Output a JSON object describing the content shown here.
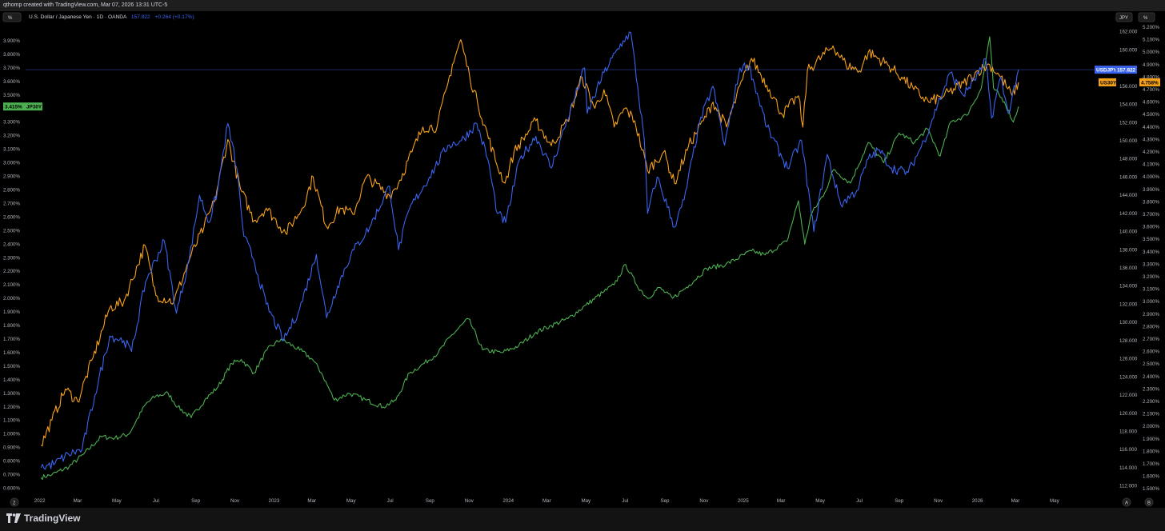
{
  "header": {
    "created_text": "qthomp created with TradingView.com, Mar 07, 2026 13:31 UTC-5"
  },
  "legend": {
    "symbol": "U.S. Dollar / Japanese Yen · 1D · OANDA",
    "value": "157.822",
    "change": "+0.264 (+0.17%)"
  },
  "buttons": {
    "left_scale": "%",
    "jpy_scale": "JPY",
    "right_scale": "%",
    "bottom_left": "2",
    "auto": "A",
    "log": "B"
  },
  "brand": {
    "name": "TradingView"
  },
  "colors": {
    "usdjpy": "#3a64f0",
    "us30y": "#f7a11a",
    "jp30y": "#4caf50",
    "background": "#000000"
  },
  "tags": {
    "usdjpy": {
      "label": "USDJPY",
      "value": "157.822"
    },
    "us30y": {
      "label": "US30Y",
      "value": "4.758%"
    },
    "jp30y": {
      "label": "JP30Y",
      "value": "3.415%"
    }
  },
  "chart_data": {
    "type": "line",
    "x_ticks": [
      "2022",
      "Mar",
      "May",
      "Jul",
      "Sep",
      "Nov",
      "2023",
      "Mar",
      "May",
      "Jul",
      "Sep",
      "Nov",
      "2024",
      "Mar",
      "May",
      "Jul",
      "Sep",
      "Nov",
      "2025",
      "Mar",
      "May",
      "Jul",
      "Sep",
      "Nov",
      "2026",
      "Mar",
      "May"
    ],
    "x_tick_dates": [
      "2022-01-01",
      "2022-03-01",
      "2022-05-01",
      "2022-07-01",
      "2022-09-01",
      "2022-11-01",
      "2023-01-01",
      "2023-03-01",
      "2023-05-01",
      "2023-07-01",
      "2023-09-01",
      "2023-11-01",
      "2024-01-01",
      "2024-03-01",
      "2024-05-01",
      "2024-07-01",
      "2024-09-01",
      "2024-11-01",
      "2025-01-01",
      "2025-03-01",
      "2025-05-01",
      "2025-07-01",
      "2025-09-01",
      "2025-11-01",
      "2026-01-01",
      "2026-03-01",
      "2026-05-01"
    ],
    "x_range": [
      "2021-12-10",
      "2026-06-30"
    ],
    "left_axis": {
      "unit": "%",
      "ylim": [
        0.55,
        4.0
      ],
      "ticks": [
        "0.600%",
        "0.700%",
        "0.800%",
        "0.900%",
        "1.000%",
        "1.100%",
        "1.200%",
        "1.300%",
        "1.400%",
        "1.500%",
        "1.600%",
        "1.700%",
        "1.800%",
        "1.900%",
        "2.000%",
        "2.100%",
        "2.200%",
        "2.300%",
        "2.400%",
        "2.500%",
        "2.600%",
        "2.700%",
        "2.800%",
        "2.900%",
        "3.000%",
        "3.100%",
        "3.200%",
        "3.300%",
        "3.400%",
        "3.500%",
        "3.600%",
        "3.700%",
        "3.800%",
        "3.900%"
      ]
    },
    "jpy_axis": {
      "unit": "JPY",
      "ylim": [
        111.0,
        162.5
      ],
      "ticks": [
        "112.000",
        "114.000",
        "116.000",
        "118.000",
        "120.000",
        "122.000",
        "124.000",
        "126.000",
        "128.000",
        "130.000",
        "132.000",
        "134.000",
        "136.000",
        "138.000",
        "140.000",
        "142.000",
        "144.000",
        "146.000",
        "148.000",
        "150.000",
        "152.000",
        "154.000",
        "156.000",
        "158.000",
        "160.000",
        "162.000"
      ]
    },
    "right_axis": {
      "unit": "%",
      "ylim": [
        1.45,
        5.2
      ],
      "ticks": [
        "1.500%",
        "1.600%",
        "1.700%",
        "1.800%",
        "1.900%",
        "2.000%",
        "2.100%",
        "2.200%",
        "2.300%",
        "2.400%",
        "2.500%",
        "2.600%",
        "2.700%",
        "2.800%",
        "2.900%",
        "3.000%",
        "3.100%",
        "3.200%",
        "3.300%",
        "3.400%",
        "3.500%",
        "3.600%",
        "3.700%",
        "3.800%",
        "3.900%",
        "4.000%",
        "4.100%",
        "4.200%",
        "4.300%",
        "4.400%",
        "4.500%",
        "4.600%",
        "4.700%",
        "4.800%",
        "4.900%",
        "5.000%",
        "5.100%",
        "5.200%"
      ]
    },
    "current_price_line": 157.822,
    "series": [
      {
        "name": "USDJPY",
        "axis": "jpy",
        "points": [
          [
            "2022-01-03",
            114.0
          ],
          [
            "2022-01-25",
            114.5
          ],
          [
            "2022-02-15",
            115.5
          ],
          [
            "2022-03-08",
            116.0
          ],
          [
            "2022-03-28",
            122.0
          ],
          [
            "2022-04-20",
            128.5
          ],
          [
            "2022-05-12",
            128.0
          ],
          [
            "2022-05-24",
            126.8
          ],
          [
            "2022-06-15",
            134.5
          ],
          [
            "2022-07-14",
            139.0
          ],
          [
            "2022-08-02",
            131.0
          ],
          [
            "2022-08-22",
            137.0
          ],
          [
            "2022-09-07",
            144.0
          ],
          [
            "2022-09-22",
            141.0
          ],
          [
            "2022-10-05",
            144.5
          ],
          [
            "2022-10-21",
            151.9
          ],
          [
            "2022-11-04",
            147.0
          ],
          [
            "2022-11-15",
            139.5
          ],
          [
            "2022-11-30",
            137.0
          ],
          [
            "2022-12-20",
            132.0
          ],
          [
            "2023-01-16",
            128.0
          ],
          [
            "2023-02-10",
            131.5
          ],
          [
            "2023-03-08",
            137.5
          ],
          [
            "2023-03-24",
            130.5
          ],
          [
            "2023-04-10",
            134.0
          ],
          [
            "2023-05-01",
            137.5
          ],
          [
            "2023-05-30",
            140.5
          ],
          [
            "2023-06-30",
            145.0
          ],
          [
            "2023-07-14",
            138.0
          ],
          [
            "2023-07-31",
            142.5
          ],
          [
            "2023-08-31",
            146.0
          ],
          [
            "2023-09-29",
            149.5
          ],
          [
            "2023-10-20",
            150.0
          ],
          [
            "2023-11-13",
            151.9
          ],
          [
            "2023-11-30",
            148.0
          ],
          [
            "2023-12-15",
            142.0
          ],
          [
            "2023-12-28",
            141.0
          ],
          [
            "2024-01-19",
            148.0
          ],
          [
            "2024-02-13",
            150.5
          ],
          [
            "2024-03-08",
            147.0
          ],
          [
            "2024-03-28",
            151.3
          ],
          [
            "2024-04-29",
            158.0
          ],
          [
            "2024-05-03",
            153.0
          ],
          [
            "2024-05-29",
            157.5
          ],
          [
            "2024-06-28",
            161.0
          ],
          [
            "2024-07-10",
            161.9
          ],
          [
            "2024-07-31",
            150.0
          ],
          [
            "2024-08-05",
            142.0
          ],
          [
            "2024-08-20",
            146.0
          ],
          [
            "2024-09-16",
            140.5
          ],
          [
            "2024-10-01",
            143.5
          ],
          [
            "2024-10-25",
            152.0
          ],
          [
            "2024-11-15",
            156.0
          ],
          [
            "2024-12-03",
            149.5
          ],
          [
            "2024-12-27",
            158.0
          ],
          [
            "2025-01-10",
            158.3
          ],
          [
            "2025-02-07",
            151.5
          ],
          [
            "2025-03-11",
            147.0
          ],
          [
            "2025-04-02",
            150.0
          ],
          [
            "2025-04-21",
            140.0
          ],
          [
            "2025-05-12",
            148.5
          ],
          [
            "2025-06-02",
            143.0
          ],
          [
            "2025-06-27",
            144.5
          ],
          [
            "2025-07-15",
            148.0
          ],
          [
            "2025-08-01",
            149.0
          ],
          [
            "2025-08-20",
            147.0
          ],
          [
            "2025-09-15",
            146.5
          ],
          [
            "2025-10-10",
            150.0
          ],
          [
            "2025-10-31",
            154.0
          ],
          [
            "2025-11-20",
            157.5
          ],
          [
            "2025-12-10",
            155.0
          ],
          [
            "2026-01-09",
            158.0
          ],
          [
            "2026-01-14",
            159.0
          ],
          [
            "2026-01-23",
            152.5
          ],
          [
            "2026-02-06",
            157.0
          ],
          [
            "2026-02-18",
            153.0
          ],
          [
            "2026-03-06",
            157.822
          ]
        ]
      },
      {
        "name": "US30Y",
        "axis": "right",
        "points": [
          [
            "2022-01-03",
            1.85
          ],
          [
            "2022-01-20",
            2.05
          ],
          [
            "2022-02-10",
            2.3
          ],
          [
            "2022-03-01",
            2.2
          ],
          [
            "2022-03-25",
            2.55
          ],
          [
            "2022-04-20",
            2.95
          ],
          [
            "2022-05-12",
            3.0
          ],
          [
            "2022-06-14",
            3.45
          ],
          [
            "2022-07-01",
            3.05
          ],
          [
            "2022-07-29",
            3.0
          ],
          [
            "2022-08-23",
            3.35
          ],
          [
            "2022-09-14",
            3.6
          ],
          [
            "2022-09-30",
            3.8
          ],
          [
            "2022-10-21",
            4.3
          ],
          [
            "2022-11-10",
            3.9
          ],
          [
            "2022-12-01",
            3.65
          ],
          [
            "2022-12-20",
            3.75
          ],
          [
            "2023-01-19",
            3.55
          ],
          [
            "2023-02-14",
            3.75
          ],
          [
            "2023-03-03",
            4.0
          ],
          [
            "2023-03-24",
            3.6
          ],
          [
            "2023-04-14",
            3.75
          ],
          [
            "2023-05-04",
            3.7
          ],
          [
            "2023-05-25",
            4.0
          ],
          [
            "2023-06-30",
            3.85
          ],
          [
            "2023-07-14",
            3.95
          ],
          [
            "2023-08-04",
            4.2
          ],
          [
            "2023-08-21",
            4.4
          ],
          [
            "2023-09-12",
            4.4
          ],
          [
            "2023-09-29",
            4.75
          ],
          [
            "2023-10-06",
            4.9
          ],
          [
            "2023-10-19",
            5.1
          ],
          [
            "2023-11-02",
            4.8
          ],
          [
            "2023-11-14",
            4.6
          ],
          [
            "2023-12-14",
            4.1
          ],
          [
            "2023-12-27",
            3.95
          ],
          [
            "2024-01-10",
            4.2
          ],
          [
            "2024-02-13",
            4.45
          ],
          [
            "2024-03-08",
            4.25
          ],
          [
            "2024-04-02",
            4.45
          ],
          [
            "2024-04-25",
            4.8
          ],
          [
            "2024-05-15",
            4.55
          ],
          [
            "2024-05-29",
            4.7
          ],
          [
            "2024-06-14",
            4.4
          ],
          [
            "2024-07-01",
            4.55
          ],
          [
            "2024-07-16",
            4.45
          ],
          [
            "2024-08-05",
            4.05
          ],
          [
            "2024-08-30",
            4.2
          ],
          [
            "2024-09-16",
            3.95
          ],
          [
            "2024-10-08",
            4.25
          ],
          [
            "2024-10-31",
            4.45
          ],
          [
            "2024-11-15",
            4.6
          ],
          [
            "2024-12-06",
            4.4
          ],
          [
            "2024-12-31",
            4.78
          ],
          [
            "2025-01-14",
            4.95
          ],
          [
            "2025-02-11",
            4.7
          ],
          [
            "2025-03-03",
            4.5
          ],
          [
            "2025-03-28",
            4.65
          ],
          [
            "2025-04-04",
            4.4
          ],
          [
            "2025-04-11",
            4.85
          ],
          [
            "2025-05-21",
            5.05
          ],
          [
            "2025-06-10",
            4.9
          ],
          [
            "2025-07-01",
            4.85
          ],
          [
            "2025-07-15",
            5.0
          ],
          [
            "2025-08-14",
            4.9
          ],
          [
            "2025-09-05",
            4.8
          ],
          [
            "2025-09-24",
            4.7
          ],
          [
            "2025-10-17",
            4.6
          ],
          [
            "2025-11-10",
            4.65
          ],
          [
            "2025-12-10",
            4.75
          ],
          [
            "2026-01-02",
            4.85
          ],
          [
            "2026-01-20",
            4.9
          ],
          [
            "2026-02-06",
            4.8
          ],
          [
            "2026-02-24",
            4.65
          ],
          [
            "2026-03-06",
            4.758
          ]
        ]
      },
      {
        "name": "JP30Y",
        "axis": "left",
        "points": [
          [
            "2022-01-03",
            0.68
          ],
          [
            "2022-01-20",
            0.7
          ],
          [
            "2022-02-16",
            0.76
          ],
          [
            "2022-03-10",
            0.85
          ],
          [
            "2022-04-07",
            0.98
          ],
          [
            "2022-04-28",
            0.97
          ],
          [
            "2022-05-20",
            1.0
          ],
          [
            "2022-06-15",
            1.22
          ],
          [
            "2022-07-01",
            1.28
          ],
          [
            "2022-07-20",
            1.3
          ],
          [
            "2022-08-04",
            1.2
          ],
          [
            "2022-08-25",
            1.12
          ],
          [
            "2022-09-15",
            1.25
          ],
          [
            "2022-10-06",
            1.35
          ],
          [
            "2022-10-27",
            1.52
          ],
          [
            "2022-11-11",
            1.55
          ],
          [
            "2022-12-01",
            1.45
          ],
          [
            "2022-12-21",
            1.62
          ],
          [
            "2023-01-12",
            1.7
          ],
          [
            "2023-02-10",
            1.62
          ],
          [
            "2023-03-02",
            1.55
          ],
          [
            "2023-03-16",
            1.45
          ],
          [
            "2023-04-05",
            1.25
          ],
          [
            "2023-04-28",
            1.3
          ],
          [
            "2023-05-25",
            1.25
          ],
          [
            "2023-06-20",
            1.2
          ],
          [
            "2023-07-10",
            1.25
          ],
          [
            "2023-07-31",
            1.45
          ],
          [
            "2023-08-17",
            1.5
          ],
          [
            "2023-09-14",
            1.6
          ],
          [
            "2023-10-03",
            1.72
          ],
          [
            "2023-10-31",
            1.85
          ],
          [
            "2023-11-22",
            1.62
          ],
          [
            "2023-12-22",
            1.6
          ],
          [
            "2024-01-17",
            1.65
          ],
          [
            "2024-02-13",
            1.75
          ],
          [
            "2024-03-08",
            1.8
          ],
          [
            "2024-04-03",
            1.85
          ],
          [
            "2024-05-01",
            1.95
          ],
          [
            "2024-05-29",
            2.05
          ],
          [
            "2024-06-14",
            2.1
          ],
          [
            "2024-07-02",
            2.25
          ],
          [
            "2024-07-19",
            2.1
          ],
          [
            "2024-08-05",
            2.0
          ],
          [
            "2024-08-23",
            2.08
          ],
          [
            "2024-09-13",
            2.0
          ],
          [
            "2024-10-09",
            2.1
          ],
          [
            "2024-11-05",
            2.22
          ],
          [
            "2024-12-05",
            2.25
          ],
          [
            "2025-01-14",
            2.35
          ],
          [
            "2025-02-04",
            2.32
          ],
          [
            "2025-03-10",
            2.42
          ],
          [
            "2025-03-28",
            2.72
          ],
          [
            "2025-04-07",
            2.4
          ],
          [
            "2025-04-17",
            2.62
          ],
          [
            "2025-05-08",
            2.78
          ],
          [
            "2025-05-22",
            2.95
          ],
          [
            "2025-06-17",
            2.85
          ],
          [
            "2025-07-15",
            3.15
          ],
          [
            "2025-08-08",
            3.0
          ],
          [
            "2025-09-01",
            3.22
          ],
          [
            "2025-09-25",
            3.15
          ],
          [
            "2025-10-15",
            3.25
          ],
          [
            "2025-11-04",
            3.05
          ],
          [
            "2025-11-20",
            3.3
          ],
          [
            "2025-12-15",
            3.35
          ],
          [
            "2026-01-07",
            3.55
          ],
          [
            "2026-01-20",
            3.93
          ],
          [
            "2026-01-26",
            3.55
          ],
          [
            "2026-02-12",
            3.45
          ],
          [
            "2026-02-26",
            3.3
          ],
          [
            "2026-03-06",
            3.415
          ]
        ]
      }
    ]
  }
}
